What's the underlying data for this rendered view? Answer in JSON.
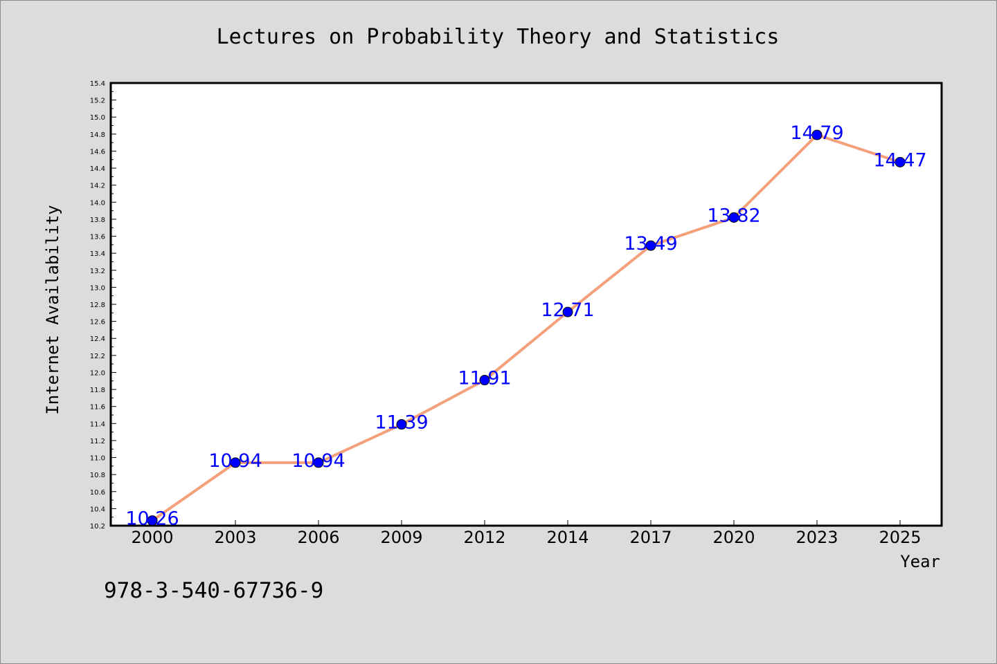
{
  "chart_data": {
    "type": "line",
    "title": "Lectures on Probability Theory and Statistics",
    "xlabel": "Year",
    "ylabel": "Internet Availability",
    "categories": [
      "2000",
      "2003",
      "2006",
      "2009",
      "2012",
      "2014",
      "2017",
      "2020",
      "2023",
      "2025"
    ],
    "series": [
      {
        "values": [
          10.26,
          10.94,
          10.94,
          11.39,
          11.91,
          12.71,
          13.49,
          13.82,
          14.79,
          14.47
        ],
        "line_color": "#f4a07a",
        "marker_color": "#0000ff"
      }
    ],
    "data_labels": [
      "10.26",
      "10.94",
      "10.94",
      "11.39",
      "11.91",
      "12.71",
      "13.49",
      "13.82",
      "14.79",
      "14.47"
    ],
    "ylim": [
      10.2,
      15.4
    ],
    "yticks": [
      "10.2",
      "10.4",
      "10.6",
      "10.8",
      "11.0",
      "11.2",
      "11.4",
      "11.6",
      "11.8",
      "12.0",
      "12.2",
      "12.4",
      "12.6",
      "12.8",
      "13.0",
      "13.2",
      "13.4",
      "13.6",
      "13.8",
      "14.0",
      "14.2",
      "14.4",
      "14.6",
      "14.8",
      "15.0",
      "15.2",
      "15.4"
    ],
    "grid": false,
    "legend": "none"
  },
  "footer_text": "978-3-540-67736-9"
}
